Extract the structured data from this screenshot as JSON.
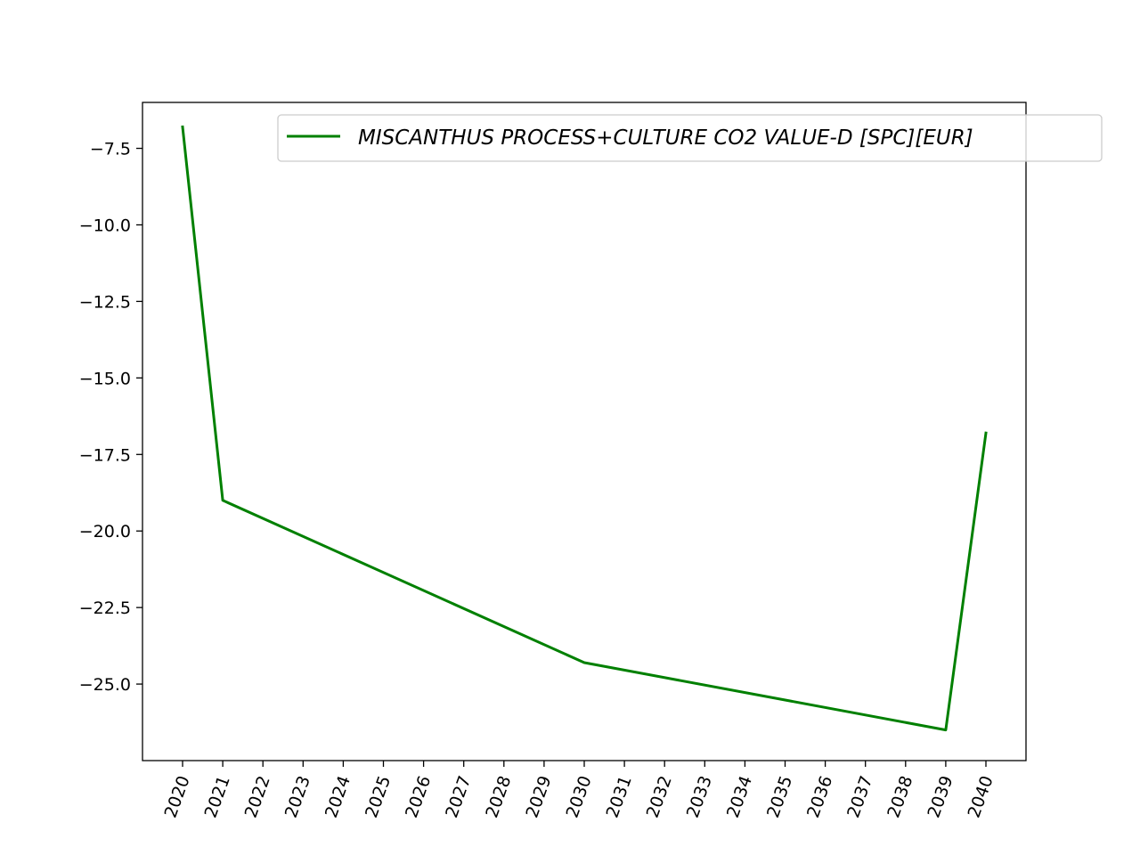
{
  "chart_data": {
    "type": "line",
    "title": "",
    "xlabel": "",
    "ylabel": "",
    "x": [
      "2020",
      "2021",
      "2022",
      "2023",
      "2024",
      "2025",
      "2026",
      "2027",
      "2028",
      "2029",
      "2030",
      "2031",
      "2032",
      "2033",
      "2034",
      "2035",
      "2036",
      "2037",
      "2038",
      "2039",
      "2040"
    ],
    "yticks": [
      -7.5,
      -10.0,
      -12.5,
      -15.0,
      -17.5,
      -20.0,
      -22.5,
      -25.0
    ],
    "ytick_labels": [
      "−7.5",
      "−10.0",
      "−12.5",
      "−15.0",
      "−17.5",
      "−20.0",
      "−22.5",
      "−25.0"
    ],
    "ylim": [
      -27.5,
      -6.0
    ],
    "grid": false,
    "legend": {
      "position": "top-right"
    },
    "series": [
      {
        "name": "MISCANTHUS PROCESS+CULTURE CO2 VALUE-D [SPC][EUR]",
        "color": "#008000",
        "points": [
          {
            "x": "2020",
            "y": -6.8
          },
          {
            "x": "2021",
            "y": -19.0
          },
          {
            "x": "2030",
            "y": -24.3
          },
          {
            "x": "2039",
            "y": -26.5
          },
          {
            "x": "2040",
            "y": -16.8
          }
        ]
      }
    ]
  }
}
